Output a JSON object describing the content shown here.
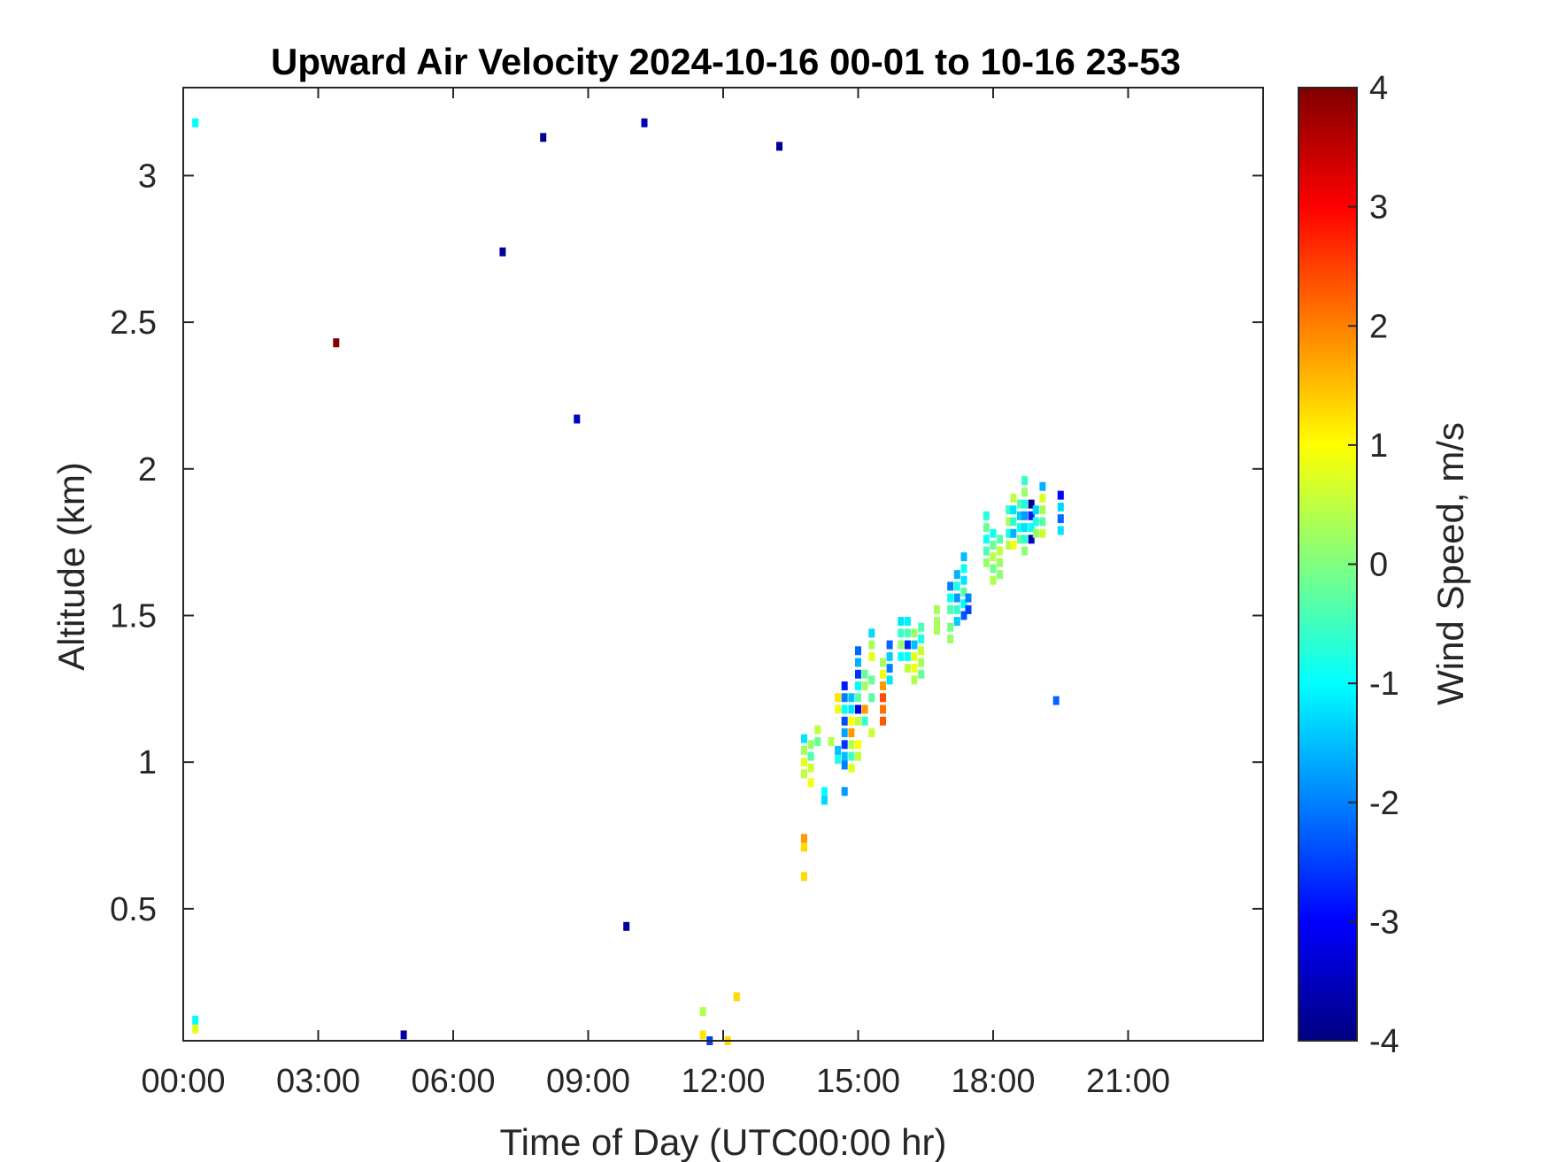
{
  "chart_data": {
    "type": "heatmap",
    "title": "Upward Air Velocity 2024-10-16 00-01 to 10-16 23-53",
    "xlabel": "Time of Day (UTC00:00 hr)",
    "ylabel": "Altitude (km)",
    "colorbar_label": "Wind Speed, m/s",
    "xlim": [
      0,
      24
    ],
    "ylim": [
      0.05,
      3.3
    ],
    "clim": [
      -4,
      4
    ],
    "colormap": "jet",
    "grid": false,
    "x_ticks": [
      0,
      3,
      6,
      9,
      12,
      15,
      18,
      21
    ],
    "x_tick_labels": [
      "00:00",
      "03:00",
      "06:00",
      "09:00",
      "12:00",
      "15:00",
      "18:00",
      "21:00"
    ],
    "y_ticks": [
      0.5,
      1,
      1.5,
      2,
      2.5,
      3
    ],
    "y_tick_labels": [
      "0.5",
      "1",
      "1.5",
      "2",
      "2.5",
      "3"
    ],
    "c_ticks": [
      4,
      3,
      2,
      1,
      0,
      -1,
      -2,
      -3,
      -4
    ],
    "c_tick_labels": [
      "4",
      "3",
      "2",
      "1",
      "0",
      "-1",
      "-2",
      "-3",
      "-4"
    ],
    "points": [
      {
        "t": 0.27,
        "alt": 3.18,
        "v": -1.0
      },
      {
        "t": 0.27,
        "alt": 0.12,
        "v": -1.0
      },
      {
        "t": 0.27,
        "alt": 0.09,
        "v": 0.8
      },
      {
        "t": 3.4,
        "alt": 2.43,
        "v": 4.0
      },
      {
        "t": 4.9,
        "alt": 0.07,
        "v": -3.8
      },
      {
        "t": 7.1,
        "alt": 2.74,
        "v": -3.8
      },
      {
        "t": 8.0,
        "alt": 3.13,
        "v": -3.8
      },
      {
        "t": 8.75,
        "alt": 2.17,
        "v": -3.5
      },
      {
        "t": 9.85,
        "alt": 0.44,
        "v": -3.8
      },
      {
        "t": 10.25,
        "alt": 3.18,
        "v": -3.6
      },
      {
        "t": 13.25,
        "alt": 3.1,
        "v": -3.8
      },
      {
        "t": 11.55,
        "alt": 0.15,
        "v": 0.4
      },
      {
        "t": 11.55,
        "alt": 0.07,
        "v": 1.2
      },
      {
        "t": 11.7,
        "alt": 0.05,
        "v": -2.5
      },
      {
        "t": 12.1,
        "alt": 0.05,
        "v": 1.3
      },
      {
        "t": 12.3,
        "alt": 0.2,
        "v": 1.3
      },
      {
        "t": 13.8,
        "alt": 1.08,
        "v": -1.2
      },
      {
        "t": 13.8,
        "alt": 1.04,
        "v": 0.3
      },
      {
        "t": 13.8,
        "alt": 1.0,
        "v": 0.8
      },
      {
        "t": 13.8,
        "alt": 0.96,
        "v": 0.5
      },
      {
        "t": 13.8,
        "alt": 0.74,
        "v": 1.8
      },
      {
        "t": 13.8,
        "alt": 0.71,
        "v": 1.3
      },
      {
        "t": 13.8,
        "alt": 0.61,
        "v": 1.3
      },
      {
        "t": 13.95,
        "alt": 1.06,
        "v": 0.2
      },
      {
        "t": 13.95,
        "alt": 1.02,
        "v": -0.4
      },
      {
        "t": 13.95,
        "alt": 0.98,
        "v": 0.6
      },
      {
        "t": 13.95,
        "alt": 0.93,
        "v": 0.9
      },
      {
        "t": 14.1,
        "alt": 1.11,
        "v": 0.5
      },
      {
        "t": 14.1,
        "alt": 1.07,
        "v": -0.2
      },
      {
        "t": 14.25,
        "alt": 0.9,
        "v": -1.0
      },
      {
        "t": 14.25,
        "alt": 0.87,
        "v": -1.3
      },
      {
        "t": 14.4,
        "alt": 1.07,
        "v": 0.4
      },
      {
        "t": 14.55,
        "alt": 1.04,
        "v": -1.5
      },
      {
        "t": 14.55,
        "alt": 1.01,
        "v": -0.8
      },
      {
        "t": 14.55,
        "alt": 1.18,
        "v": 0.9
      },
      {
        "t": 14.55,
        "alt": 1.22,
        "v": 1.2
      },
      {
        "t": 14.7,
        "alt": 1.26,
        "v": -2.8
      },
      {
        "t": 14.7,
        "alt": 1.22,
        "v": -2.0
      },
      {
        "t": 14.7,
        "alt": 1.18,
        "v": -1.0
      },
      {
        "t": 14.7,
        "alt": 1.14,
        "v": -2.4
      },
      {
        "t": 14.7,
        "alt": 1.1,
        "v": -1.7
      },
      {
        "t": 14.7,
        "alt": 1.06,
        "v": -2.6
      },
      {
        "t": 14.7,
        "alt": 1.02,
        "v": -1.5
      },
      {
        "t": 14.7,
        "alt": 0.99,
        "v": -2.0
      },
      {
        "t": 14.7,
        "alt": 0.9,
        "v": -1.8
      },
      {
        "t": 14.85,
        "alt": 1.18,
        "v": -1.2
      },
      {
        "t": 14.85,
        "alt": 1.14,
        "v": 1.0
      },
      {
        "t": 14.85,
        "alt": 1.1,
        "v": 1.8
      },
      {
        "t": 14.85,
        "alt": 1.06,
        "v": 0.4
      },
      {
        "t": 14.85,
        "alt": 1.02,
        "v": -0.5
      },
      {
        "t": 14.85,
        "alt": 0.98,
        "v": 0.8
      },
      {
        "t": 14.85,
        "alt": 1.22,
        "v": -1.5
      },
      {
        "t": 15.0,
        "alt": 1.38,
        "v": -2.2
      },
      {
        "t": 15.0,
        "alt": 1.34,
        "v": -1.6
      },
      {
        "t": 15.0,
        "alt": 1.3,
        "v": -2.6
      },
      {
        "t": 15.0,
        "alt": 1.26,
        "v": -1.0
      },
      {
        "t": 15.0,
        "alt": 1.22,
        "v": -0.3
      },
      {
        "t": 15.0,
        "alt": 1.18,
        "v": -3.2
      },
      {
        "t": 15.0,
        "alt": 1.14,
        "v": 0.5
      },
      {
        "t": 15.0,
        "alt": 1.06,
        "v": 1.0
      },
      {
        "t": 15.0,
        "alt": 1.02,
        "v": 0.5
      },
      {
        "t": 15.15,
        "alt": 1.26,
        "v": 0.3
      },
      {
        "t": 15.15,
        "alt": 1.18,
        "v": 1.8
      },
      {
        "t": 15.15,
        "alt": 1.14,
        "v": -0.6
      },
      {
        "t": 15.15,
        "alt": 1.3,
        "v": -0.2
      },
      {
        "t": 15.3,
        "alt": 1.44,
        "v": -1.3
      },
      {
        "t": 15.3,
        "alt": 1.4,
        "v": 0.3
      },
      {
        "t": 15.3,
        "alt": 1.36,
        "v": 0.8
      },
      {
        "t": 15.3,
        "alt": 1.28,
        "v": -0.2
      },
      {
        "t": 15.3,
        "alt": 1.22,
        "v": -0.3
      },
      {
        "t": 15.3,
        "alt": 1.1,
        "v": 0.6
      },
      {
        "t": 15.55,
        "alt": 1.34,
        "v": 0.3
      },
      {
        "t": 15.55,
        "alt": 1.3,
        "v": 0.9
      },
      {
        "t": 15.55,
        "alt": 1.26,
        "v": 1.8
      },
      {
        "t": 15.55,
        "alt": 1.22,
        "v": 2.4
      },
      {
        "t": 15.55,
        "alt": 1.18,
        "v": 2.1
      },
      {
        "t": 15.55,
        "alt": 1.14,
        "v": 2.3
      },
      {
        "t": 15.7,
        "alt": 1.4,
        "v": -2.2
      },
      {
        "t": 15.7,
        "alt": 1.36,
        "v": -1.4
      },
      {
        "t": 15.7,
        "alt": 1.32,
        "v": -2.0
      },
      {
        "t": 15.7,
        "alt": 1.28,
        "v": -1.2
      },
      {
        "t": 15.95,
        "alt": 1.48,
        "v": -1.2
      },
      {
        "t": 15.95,
        "alt": 1.44,
        "v": -0.6
      },
      {
        "t": 15.95,
        "alt": 1.4,
        "v": 0.2
      },
      {
        "t": 15.95,
        "alt": 1.36,
        "v": -1.0
      },
      {
        "t": 16.1,
        "alt": 1.44,
        "v": -0.4
      },
      {
        "t": 16.1,
        "alt": 1.4,
        "v": -2.7
      },
      {
        "t": 16.1,
        "alt": 1.36,
        "v": -1.0
      },
      {
        "t": 16.1,
        "alt": 1.32,
        "v": 0.5
      },
      {
        "t": 16.1,
        "alt": 1.48,
        "v": -1.1
      },
      {
        "t": 16.25,
        "alt": 1.44,
        "v": 0.2
      },
      {
        "t": 16.25,
        "alt": 1.4,
        "v": -1.5
      },
      {
        "t": 16.25,
        "alt": 1.36,
        "v": 0.8
      },
      {
        "t": 16.25,
        "alt": 1.32,
        "v": 0.9
      },
      {
        "t": 16.25,
        "alt": 1.28,
        "v": 0.4
      },
      {
        "t": 16.4,
        "alt": 1.46,
        "v": -0.4
      },
      {
        "t": 16.4,
        "alt": 1.42,
        "v": -0.8
      },
      {
        "t": 16.4,
        "alt": 1.38,
        "v": 0.6
      },
      {
        "t": 16.4,
        "alt": 1.34,
        "v": 0.3
      },
      {
        "t": 16.4,
        "alt": 1.3,
        "v": -0.2
      },
      {
        "t": 16.75,
        "alt": 1.52,
        "v": 0.3
      },
      {
        "t": 16.75,
        "alt": 1.48,
        "v": 0.3
      },
      {
        "t": 16.75,
        "alt": 1.45,
        "v": 0.3
      },
      {
        "t": 17.05,
        "alt": 1.6,
        "v": -2.0
      },
      {
        "t": 17.05,
        "alt": 1.56,
        "v": -1.0
      },
      {
        "t": 17.05,
        "alt": 1.52,
        "v": -0.4
      },
      {
        "t": 17.05,
        "alt": 1.46,
        "v": -0.1
      },
      {
        "t": 17.05,
        "alt": 1.42,
        "v": 0.2
      },
      {
        "t": 17.2,
        "alt": 1.64,
        "v": -1.6
      },
      {
        "t": 17.2,
        "alt": 1.6,
        "v": -0.8
      },
      {
        "t": 17.2,
        "alt": 1.56,
        "v": -1.8
      },
      {
        "t": 17.2,
        "alt": 1.52,
        "v": -0.6
      },
      {
        "t": 17.2,
        "alt": 1.48,
        "v": -1.4
      },
      {
        "t": 17.35,
        "alt": 1.7,
        "v": -1.5
      },
      {
        "t": 17.35,
        "alt": 1.66,
        "v": -0.9
      },
      {
        "t": 17.35,
        "alt": 1.62,
        "v": -1.2
      },
      {
        "t": 17.35,
        "alt": 1.58,
        "v": -0.3
      },
      {
        "t": 17.35,
        "alt": 1.54,
        "v": -1.0
      },
      {
        "t": 17.35,
        "alt": 1.5,
        "v": -2.3
      },
      {
        "t": 17.45,
        "alt": 1.56,
        "v": -2.0
      },
      {
        "t": 17.45,
        "alt": 1.52,
        "v": -2.5
      },
      {
        "t": 17.85,
        "alt": 1.84,
        "v": -0.7
      },
      {
        "t": 17.85,
        "alt": 1.8,
        "v": -0.2
      },
      {
        "t": 17.85,
        "alt": 1.76,
        "v": -0.9
      },
      {
        "t": 17.85,
        "alt": 1.72,
        "v": -0.4
      },
      {
        "t": 17.85,
        "alt": 1.68,
        "v": 0.2
      },
      {
        "t": 18.0,
        "alt": 1.78,
        "v": -0.9
      },
      {
        "t": 18.0,
        "alt": 1.74,
        "v": -0.2
      },
      {
        "t": 18.0,
        "alt": 1.7,
        "v": 0.4
      },
      {
        "t": 18.0,
        "alt": 1.66,
        "v": -0.1
      },
      {
        "t": 18.0,
        "alt": 1.62,
        "v": 0.4
      },
      {
        "t": 18.15,
        "alt": 1.76,
        "v": -0.3
      },
      {
        "t": 18.15,
        "alt": 1.72,
        "v": 0.5
      },
      {
        "t": 18.15,
        "alt": 1.68,
        "v": 0.2
      },
      {
        "t": 18.15,
        "alt": 1.64,
        "v": 0.1
      },
      {
        "t": 18.35,
        "alt": 1.86,
        "v": -0.6
      },
      {
        "t": 18.35,
        "alt": 1.82,
        "v": 0.3
      },
      {
        "t": 18.35,
        "alt": 1.78,
        "v": -0.8
      },
      {
        "t": 18.35,
        "alt": 1.74,
        "v": 0.4
      },
      {
        "t": 18.45,
        "alt": 1.9,
        "v": 0.5
      },
      {
        "t": 18.45,
        "alt": 1.86,
        "v": -1.2
      },
      {
        "t": 18.45,
        "alt": 1.82,
        "v": -0.6
      },
      {
        "t": 18.45,
        "alt": 1.78,
        "v": -1.6
      },
      {
        "t": 18.45,
        "alt": 1.74,
        "v": 0.9
      },
      {
        "t": 18.6,
        "alt": 1.88,
        "v": -0.3
      },
      {
        "t": 18.6,
        "alt": 1.84,
        "v": -1.4
      },
      {
        "t": 18.6,
        "alt": 1.8,
        "v": -0.9
      },
      {
        "t": 18.6,
        "alt": 1.76,
        "v": -0.2
      },
      {
        "t": 18.7,
        "alt": 1.96,
        "v": -0.6
      },
      {
        "t": 18.7,
        "alt": 1.92,
        "v": 0.2
      },
      {
        "t": 18.7,
        "alt": 1.88,
        "v": -0.8
      },
      {
        "t": 18.7,
        "alt": 1.84,
        "v": -1.8
      },
      {
        "t": 18.7,
        "alt": 1.8,
        "v": -1.2
      },
      {
        "t": 18.7,
        "alt": 1.76,
        "v": -0.6
      },
      {
        "t": 18.7,
        "alt": 1.72,
        "v": 0.1
      },
      {
        "t": 18.85,
        "alt": 1.88,
        "v": -3.9
      },
      {
        "t": 18.85,
        "alt": 1.84,
        "v": -2.8
      },
      {
        "t": 18.85,
        "alt": 1.8,
        "v": -1.0
      },
      {
        "t": 18.85,
        "alt": 1.76,
        "v": -3.5
      },
      {
        "t": 18.95,
        "alt": 1.86,
        "v": -1.3
      },
      {
        "t": 18.95,
        "alt": 1.82,
        "v": -0.8
      },
      {
        "t": 18.95,
        "alt": 1.78,
        "v": 0.2
      },
      {
        "t": 19.1,
        "alt": 1.94,
        "v": -1.6
      },
      {
        "t": 19.1,
        "alt": 1.9,
        "v": 0.7
      },
      {
        "t": 19.1,
        "alt": 1.86,
        "v": 0.3
      },
      {
        "t": 19.1,
        "alt": 1.82,
        "v": -0.3
      },
      {
        "t": 19.1,
        "alt": 1.78,
        "v": 0.6
      },
      {
        "t": 19.5,
        "alt": 1.91,
        "v": -3.0
      },
      {
        "t": 19.5,
        "alt": 1.87,
        "v": -1.3
      },
      {
        "t": 19.5,
        "alt": 1.83,
        "v": -2.2
      },
      {
        "t": 19.5,
        "alt": 1.79,
        "v": -1.2
      },
      {
        "t": 19.4,
        "alt": 1.21,
        "v": -2.2
      }
    ]
  }
}
